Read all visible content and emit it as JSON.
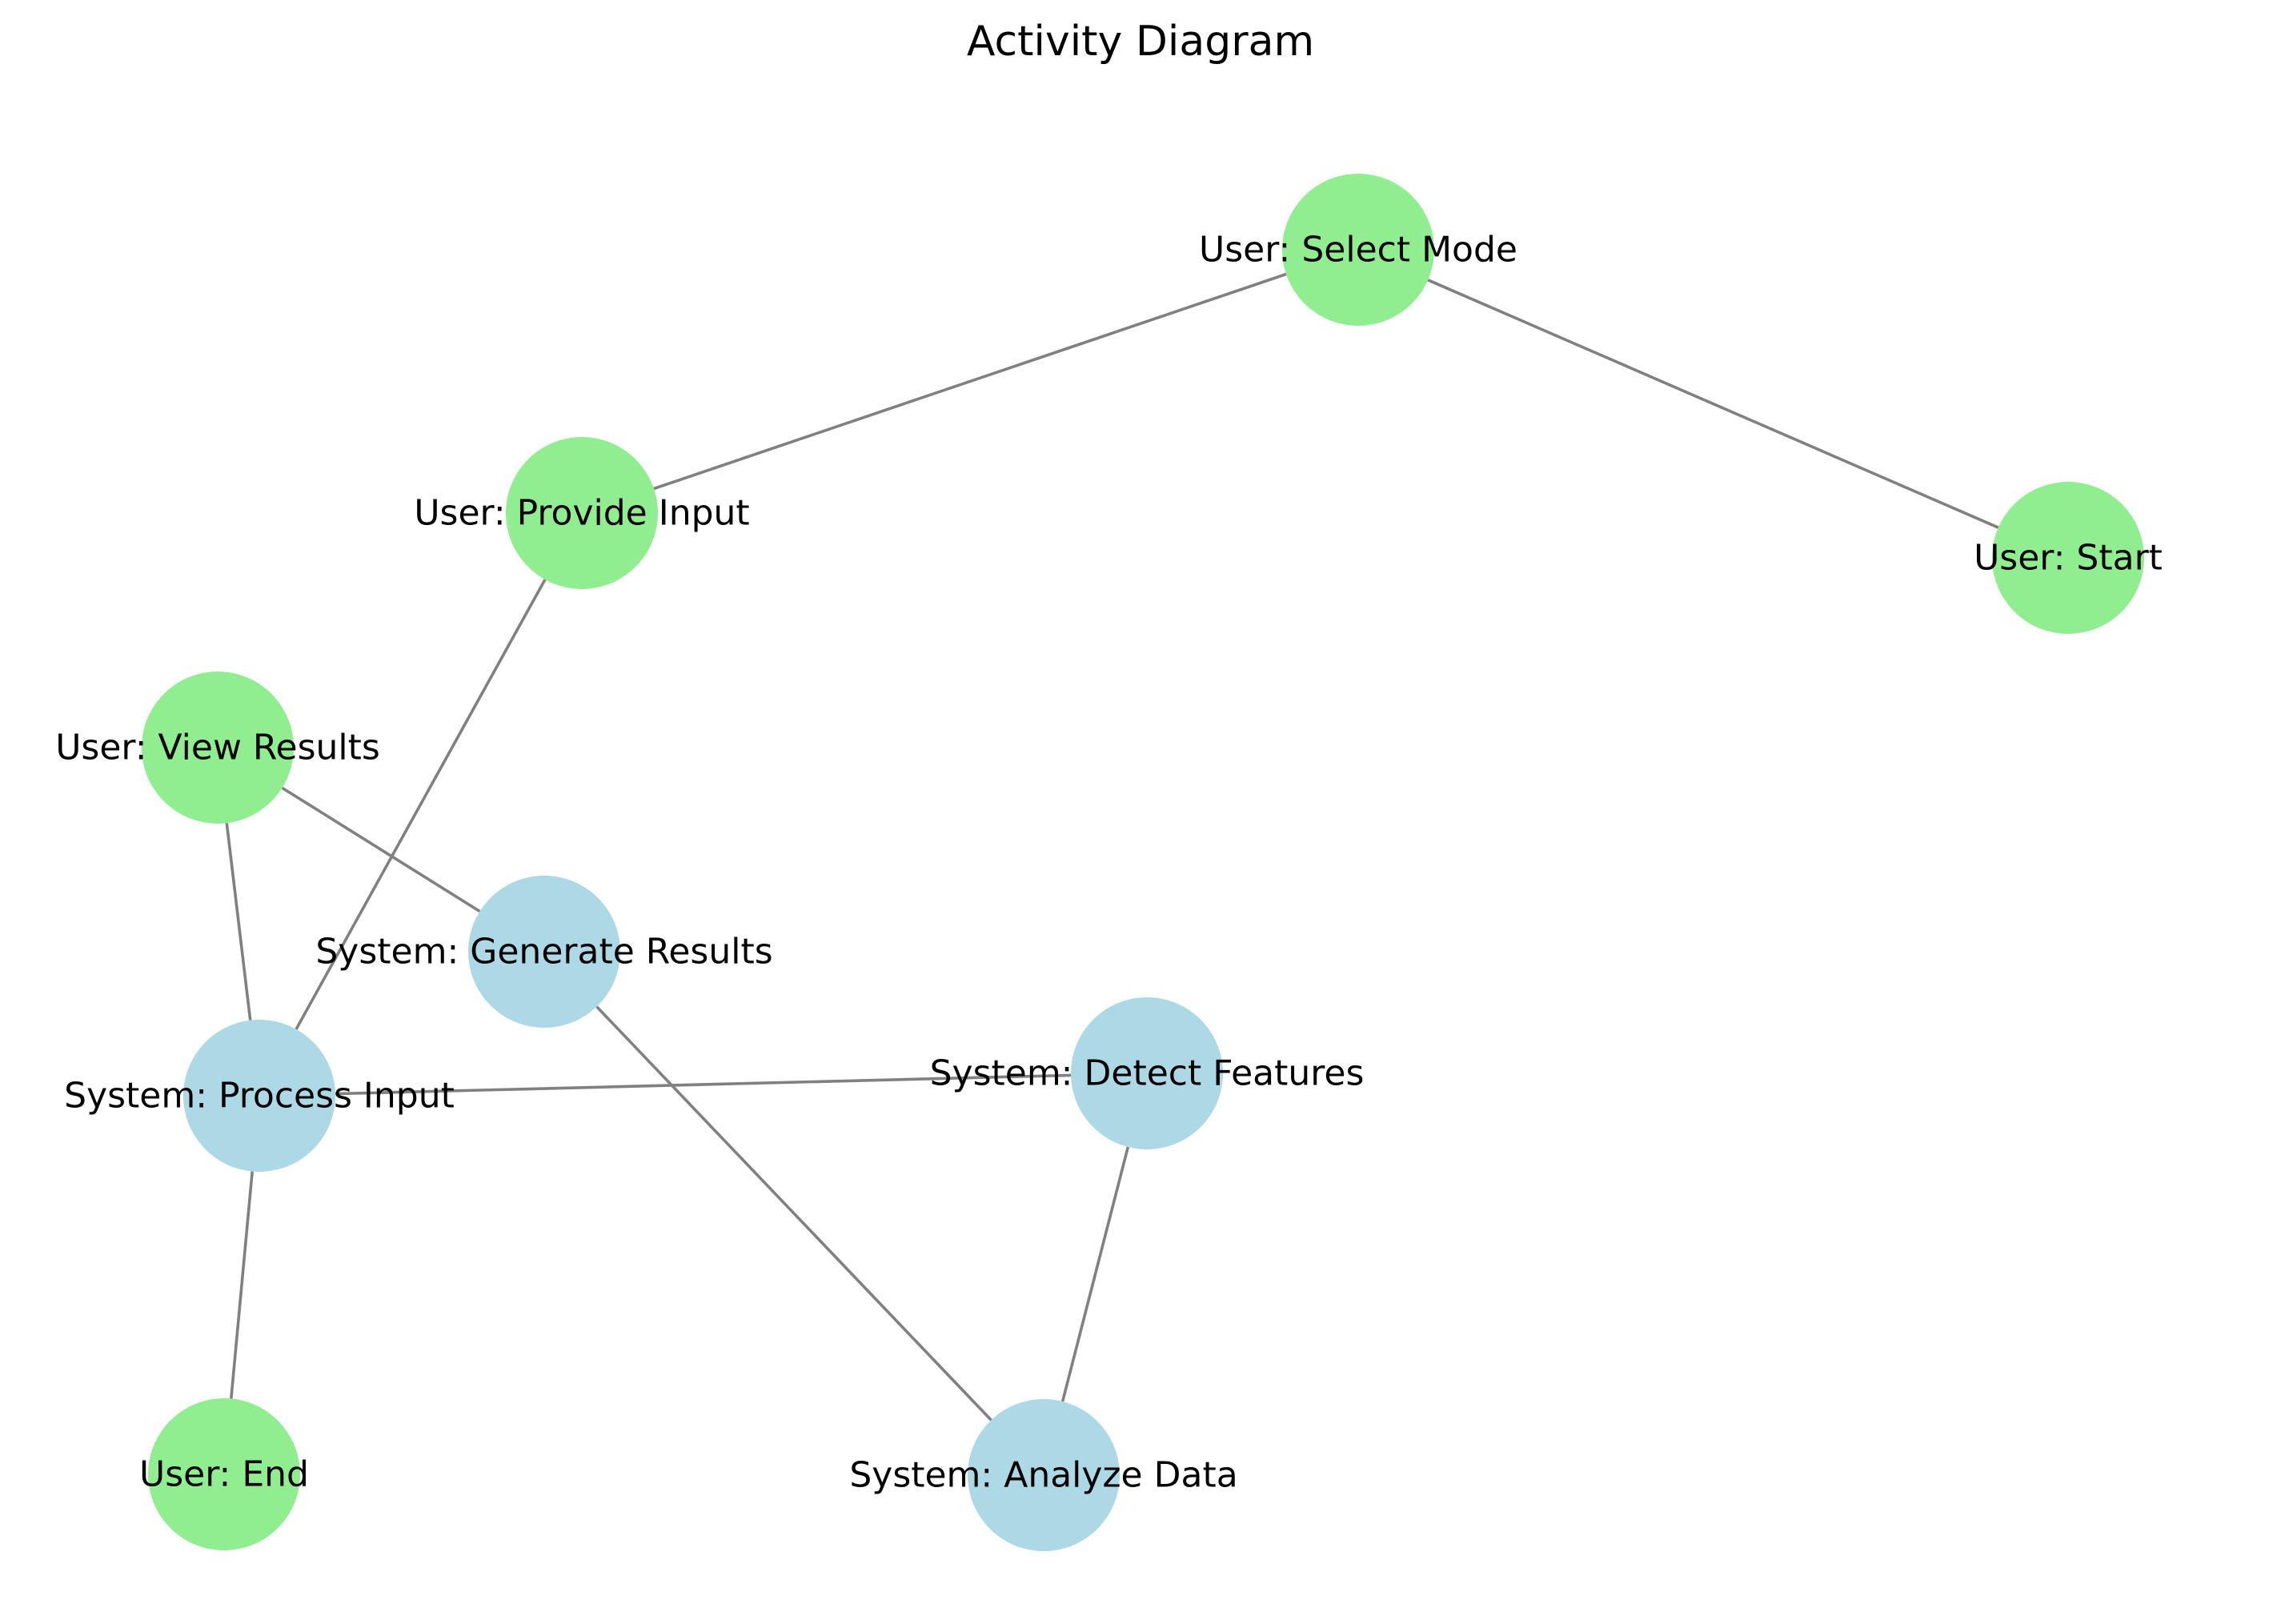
{
  "title": "Activity Diagram",
  "colors": {
    "user_node": "#90EE90",
    "system_node": "#ADD8E6",
    "edge": "#808080"
  },
  "nodes": [
    {
      "id": "select-mode",
      "label": "User: Select Mode",
      "kind": "user"
    },
    {
      "id": "provide-input",
      "label": "User: Provide Input",
      "kind": "user"
    },
    {
      "id": "start",
      "label": "User: Start",
      "kind": "user"
    },
    {
      "id": "view-results",
      "label": "User: View Results",
      "kind": "user"
    },
    {
      "id": "generate-results",
      "label": "System: Generate Results",
      "kind": "system"
    },
    {
      "id": "process-input",
      "label": "System: Process Input",
      "kind": "system"
    },
    {
      "id": "detect-features",
      "label": "System: Detect Features",
      "kind": "system"
    },
    {
      "id": "end",
      "label": "User: End",
      "kind": "user"
    },
    {
      "id": "analyze-data",
      "label": "System: Analyze Data",
      "kind": "system"
    }
  ],
  "edges": [
    {
      "from": "select-mode",
      "to": "provide-input"
    },
    {
      "from": "select-mode",
      "to": "start"
    },
    {
      "from": "provide-input",
      "to": "process-input"
    },
    {
      "from": "view-results",
      "to": "generate-results"
    },
    {
      "from": "view-results",
      "to": "process-input"
    },
    {
      "from": "generate-results",
      "to": "analyze-data"
    },
    {
      "from": "process-input",
      "to": "detect-features"
    },
    {
      "from": "process-input",
      "to": "end"
    },
    {
      "from": "detect-features",
      "to": "analyze-data"
    }
  ]
}
